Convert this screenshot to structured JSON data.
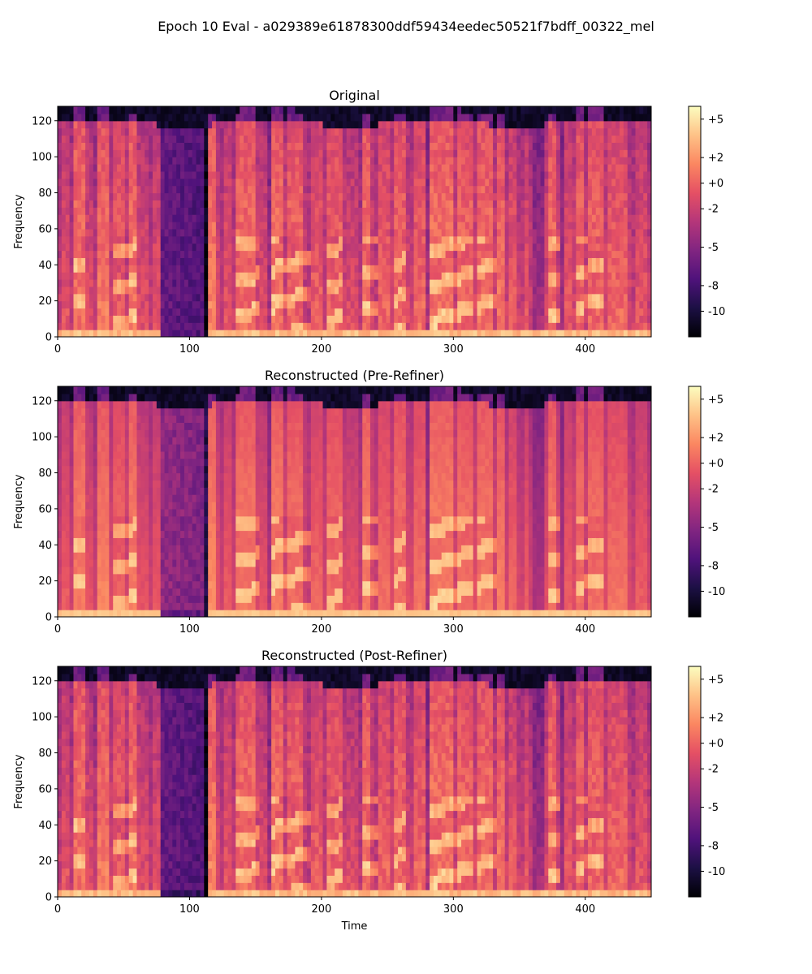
{
  "suptitle": "Epoch 10 Eval - a029389e61878300ddf59434eedec50521f7bdff_00322_mel",
  "colormap": "magma",
  "colormap_stops": [
    "#000004",
    "#1c1044",
    "#4f127b",
    "#812581",
    "#b5367a",
    "#e55064",
    "#fb8761",
    "#fec287",
    "#fcfdbf"
  ],
  "chart_data": [
    {
      "type": "heatmap",
      "title": "Original",
      "xlabel": "",
      "ylabel": "Frequency",
      "xlim": [
        0,
        450
      ],
      "ylim": [
        0,
        128
      ],
      "xticks": [
        0,
        100,
        200,
        300,
        400
      ],
      "yticks": [
        0,
        20,
        40,
        60,
        80,
        100,
        120
      ],
      "colorbar": {
        "range": [
          -12,
          6
        ],
        "ticks": [
          5,
          2,
          0,
          -2,
          -5,
          -8,
          -10
        ],
        "tick_labels": [
          "+5",
          "+2",
          "+0",
          "-2",
          "-5",
          "-8",
          "-10"
        ]
      }
    },
    {
      "type": "heatmap",
      "title": "Reconstructed (Pre-Refiner)",
      "xlabel": "",
      "ylabel": "Frequency",
      "xlim": [
        0,
        450
      ],
      "ylim": [
        0,
        128
      ],
      "xticks": [
        0,
        100,
        200,
        300,
        400
      ],
      "yticks": [
        0,
        20,
        40,
        60,
        80,
        100,
        120
      ],
      "colorbar": {
        "range": [
          -12,
          6
        ],
        "ticks": [
          5,
          2,
          0,
          -2,
          -5,
          -8,
          -10
        ],
        "tick_labels": [
          "+5",
          "+2",
          "+0",
          "-2",
          "-5",
          "-8",
          "-10"
        ]
      }
    },
    {
      "type": "heatmap",
      "title": "Reconstructed (Post-Refiner)",
      "xlabel": "Time",
      "ylabel": "Frequency",
      "xlim": [
        0,
        450
      ],
      "ylim": [
        0,
        128
      ],
      "xticks": [
        0,
        100,
        200,
        300,
        400
      ],
      "yticks": [
        0,
        20,
        40,
        60,
        80,
        100,
        120
      ],
      "colorbar": {
        "range": [
          -12,
          6
        ],
        "ticks": [
          5,
          2,
          0,
          -2,
          -5,
          -8,
          -10
        ],
        "tick_labels": [
          "+5",
          "+2",
          "+0",
          "-2",
          "-5",
          "-8",
          "-10"
        ]
      }
    }
  ]
}
